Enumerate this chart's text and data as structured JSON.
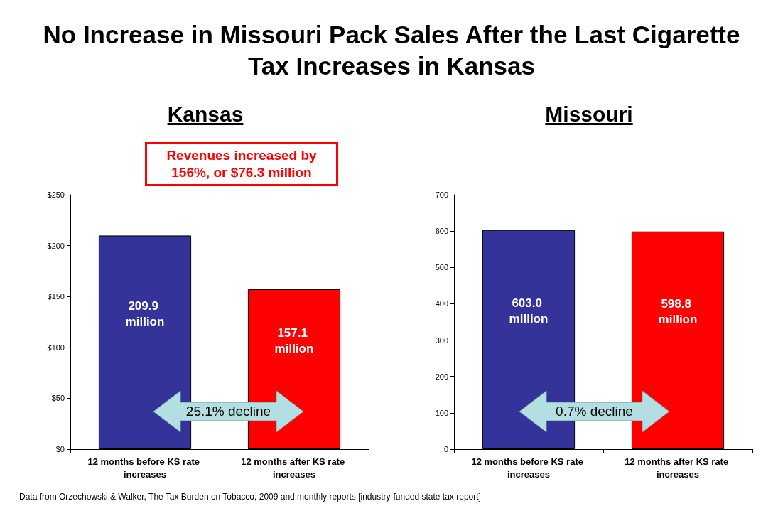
{
  "chart_data": [
    {
      "type": "bar",
      "title": "No Increase in Missouri Pack Sales After the Last Cigarette Tax Increases in Kansas",
      "subtitle": "Kansas",
      "categories": [
        "12 months before KS rate increases",
        "12 months after KS rate increases"
      ],
      "values": [
        209.9,
        157.1
      ],
      "colors": [
        "#333399",
        "#ff0000"
      ],
      "value_labels": [
        "209.9 million",
        "157.1 million"
      ],
      "ylim": [
        0,
        250
      ],
      "yticks": [
        {
          "value": 0,
          "label": "$0"
        },
        {
          "value": 50,
          "label": "$50"
        },
        {
          "value": 100,
          "label": "$100"
        },
        {
          "value": 150,
          "label": "$150"
        },
        {
          "value": 200,
          "label": "$200"
        },
        {
          "value": 250,
          "label": "$250"
        }
      ],
      "grid": false,
      "annotations": [
        "Revenues increased by 156%, or $76.3 million",
        "25.1% decline"
      ]
    },
    {
      "type": "bar",
      "subtitle": "Missouri",
      "categories": [
        "12 months before KS rate increases",
        "12 months after KS rate increases"
      ],
      "values": [
        603.0,
        598.8
      ],
      "colors": [
        "#333399",
        "#ff0000"
      ],
      "value_labels": [
        "603.0 million",
        "598.8 million"
      ],
      "ylim": [
        0,
        700
      ],
      "yticks": [
        0,
        100,
        200,
        300,
        400,
        500,
        600,
        700
      ],
      "grid": false,
      "annotations": [
        "0.7% decline",
        "Data from Orzechowski & Walker, The Tax Burden on Tobacco, 2009 and monthly reports [industry-funded state tax report]"
      ]
    }
  ]
}
